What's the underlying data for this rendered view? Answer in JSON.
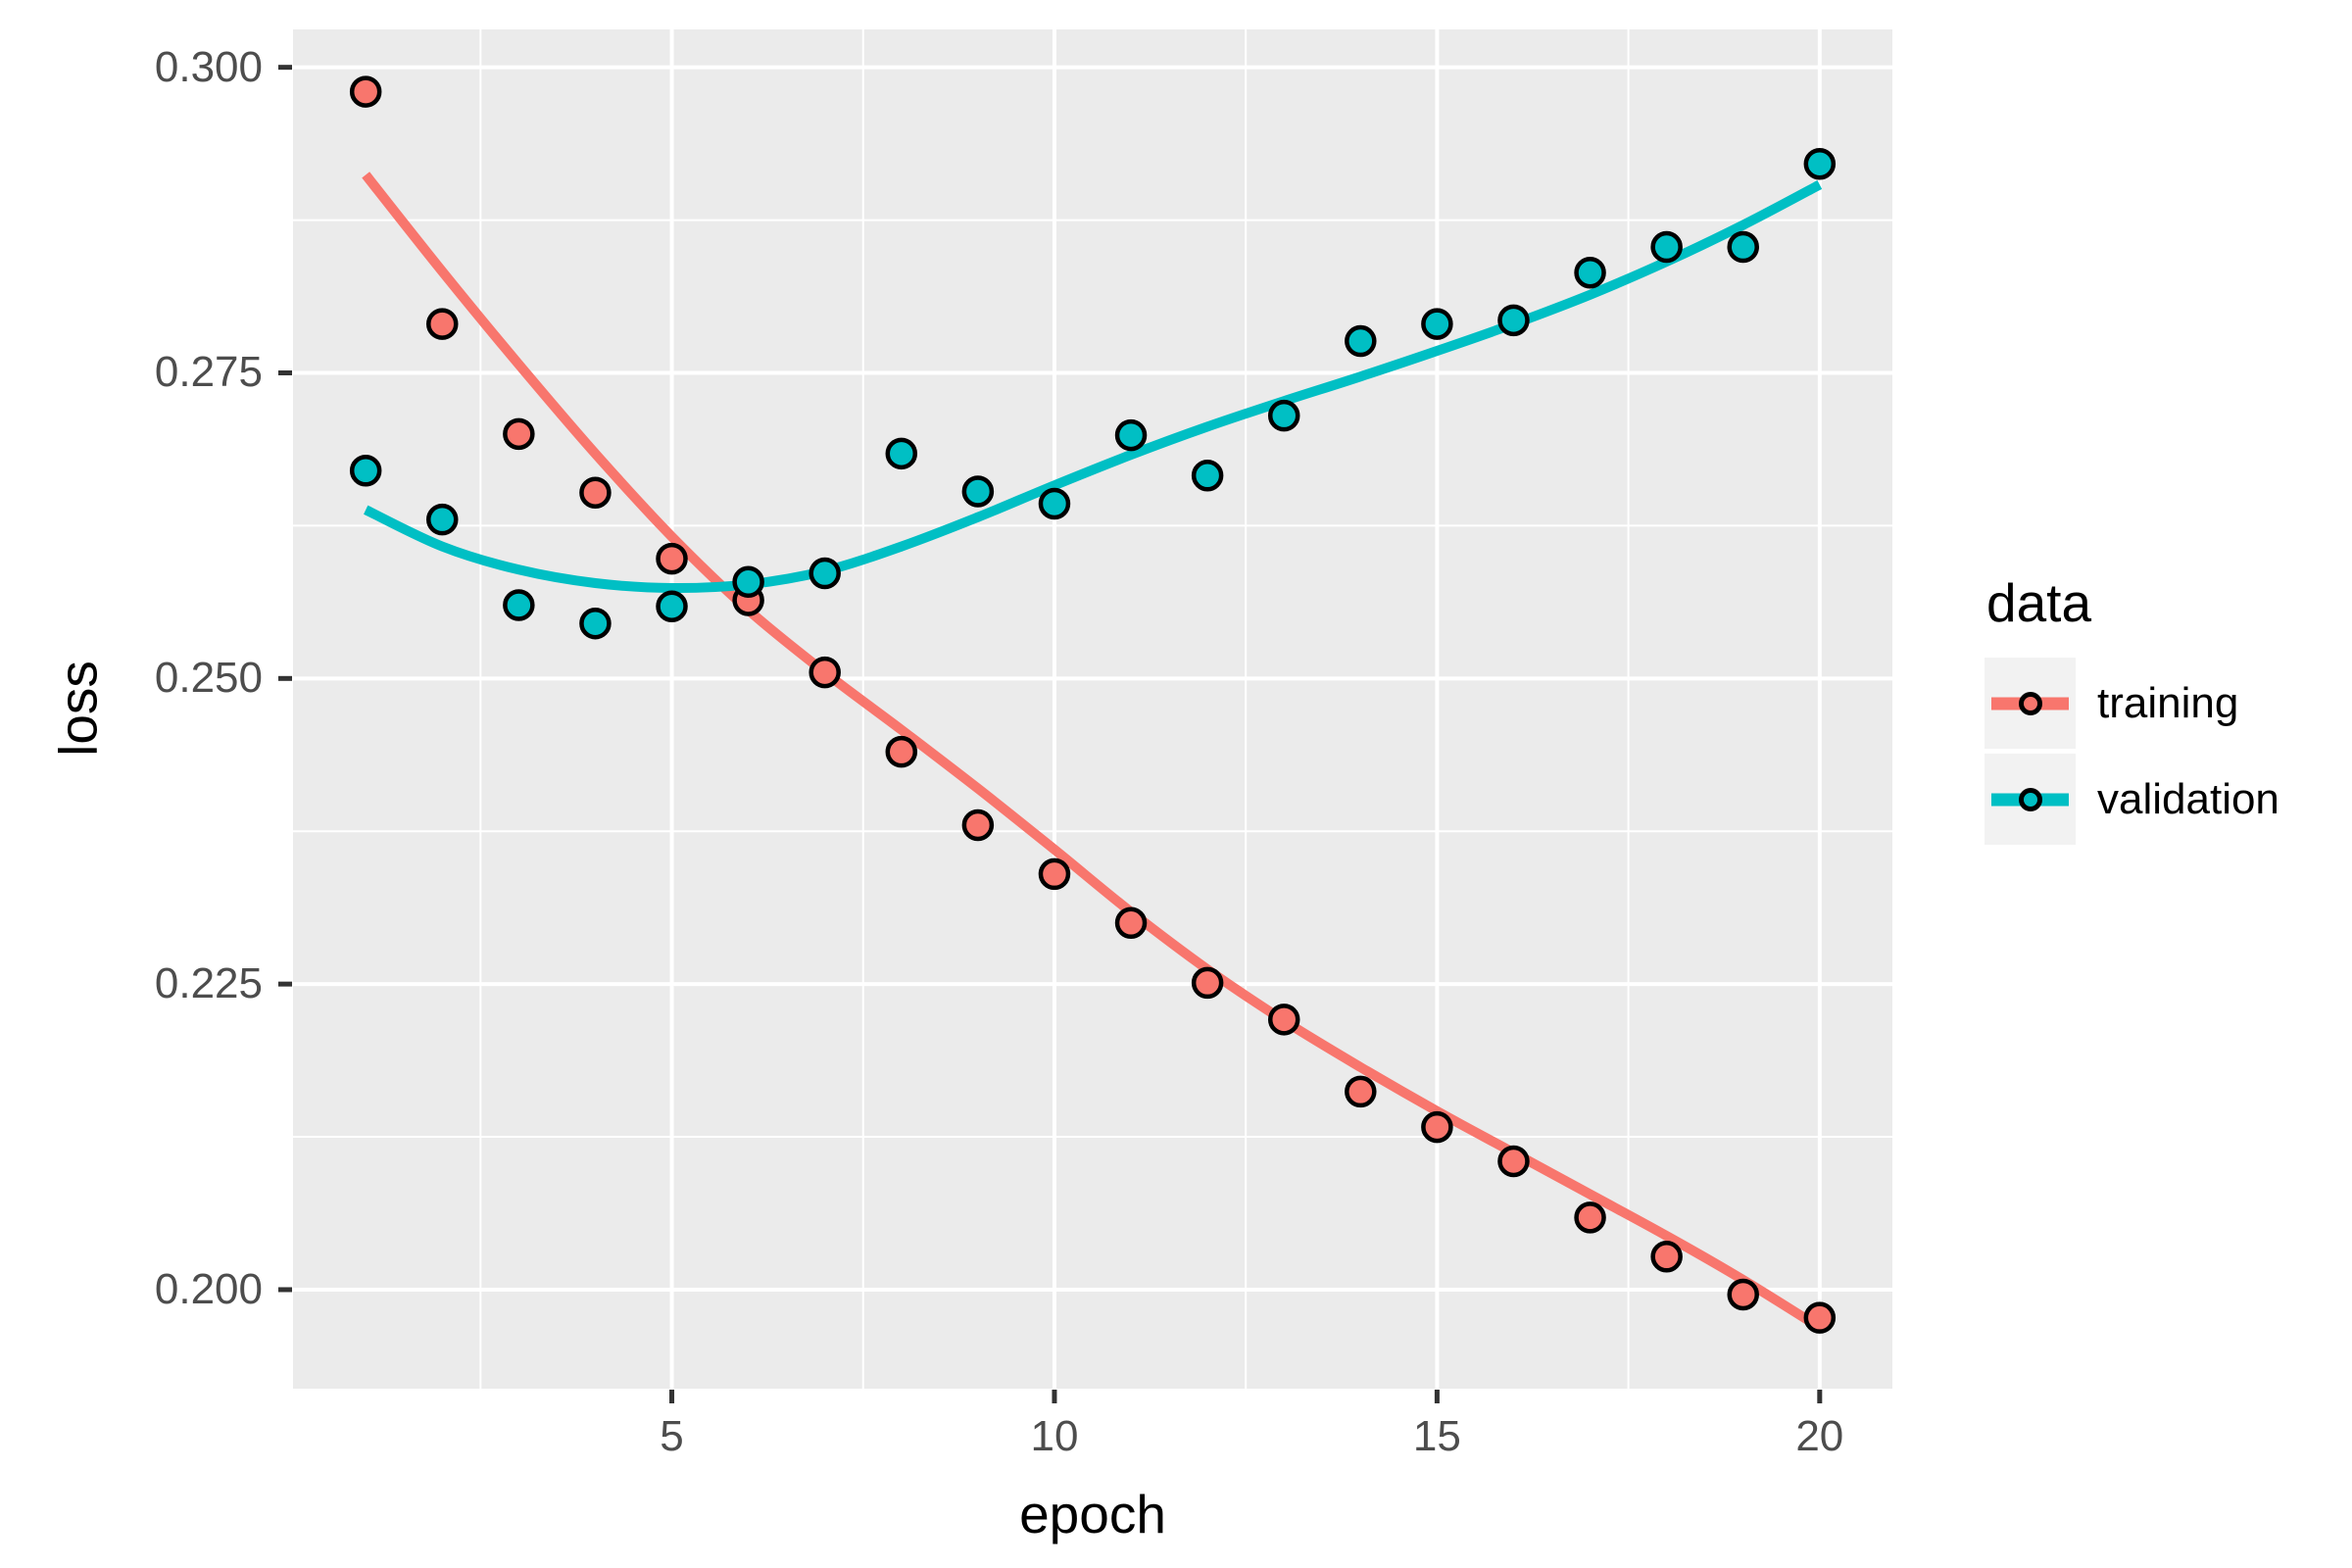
{
  "chart_data": {
    "type": "scatter",
    "title": "",
    "xlabel": "epoch",
    "ylabel": "loss",
    "x": [
      1,
      2,
      3,
      4,
      5,
      6,
      7,
      8,
      9,
      10,
      11,
      12,
      13,
      14,
      15,
      16,
      17,
      18,
      19,
      20
    ],
    "series": [
      {
        "name": "training",
        "color": "#F8766D",
        "values": [
          0.298,
          0.279,
          0.27,
          0.2652,
          0.2598,
          0.2564,
          0.2505,
          0.244,
          0.238,
          0.234,
          0.23,
          0.2251,
          0.2221,
          0.2162,
          0.2133,
          0.2105,
          0.2059,
          0.2027,
          0.1996,
          0.1977
        ],
        "smooth": [
          0.2912,
          0.2833,
          0.2757,
          0.2684,
          0.2616,
          0.2556,
          0.2505,
          0.2458,
          0.241,
          0.236,
          0.2309,
          0.2262,
          0.222,
          0.2182,
          0.2146,
          0.2112,
          0.2078,
          0.2044,
          0.2008,
          0.1969
        ]
      },
      {
        "name": "validation",
        "color": "#00BFC4",
        "values": [
          0.267,
          0.263,
          0.256,
          0.2545,
          0.2559,
          0.2579,
          0.2586,
          0.2684,
          0.2653,
          0.2643,
          0.2699,
          0.2666,
          0.2715,
          0.2776,
          0.279,
          0.2793,
          0.2832,
          0.2853,
          0.2853,
          0.2921
        ],
        "smooth": [
          0.2638,
          0.2608,
          0.2589,
          0.2578,
          0.2574,
          0.2577,
          0.2588,
          0.2608,
          0.2632,
          0.2658,
          0.2683,
          0.2706,
          0.2727,
          0.2747,
          0.2768,
          0.279,
          0.2814,
          0.2841,
          0.2871,
          0.2904
        ]
      }
    ],
    "xlim": [
      0.05,
      20.95
    ],
    "ylim": [
      0.1919,
      0.3031
    ],
    "x_ticks": [
      5,
      10,
      15,
      20
    ],
    "x_tick_labels": [
      "5",
      "10",
      "15",
      "20"
    ],
    "x_minor_ticks": [
      2.5,
      7.5,
      12.5,
      17.5
    ],
    "y_ticks": [
      0.3,
      0.275,
      0.25,
      0.225,
      0.2
    ],
    "y_tick_labels": [
      "0.300",
      "0.275",
      "0.250",
      "0.225",
      "0.200"
    ],
    "y_minor_ticks": [
      0.2875,
      0.2625,
      0.2375,
      0.2125
    ],
    "grid": true,
    "legend": {
      "title": "data",
      "position": "right",
      "entries": [
        "training",
        "validation"
      ]
    },
    "colors": {
      "panel_background": "#EBEBEB",
      "gridline": "#FFFFFF",
      "tick_mark": "#333333",
      "tick_label": "#4D4D4D",
      "axis_title": "#000000",
      "legend_key_background": "#F2F2F2",
      "point_outline": "#000000"
    }
  }
}
